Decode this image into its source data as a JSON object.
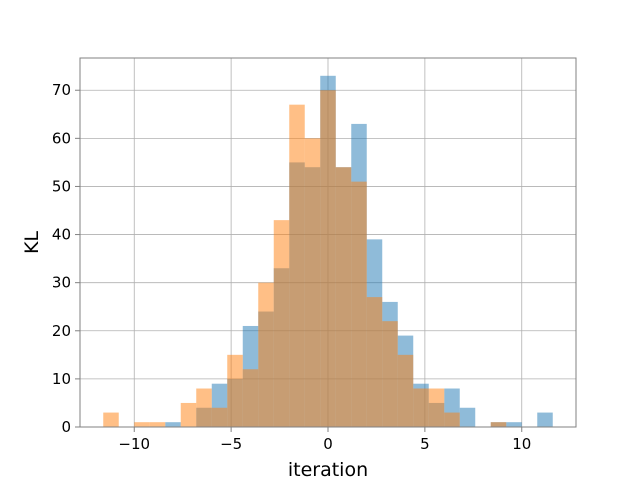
{
  "chart_data": {
    "type": "bar",
    "subtype": "overlapping-histogram",
    "title": "",
    "xlabel": "iteration",
    "ylabel": "KL",
    "xlim": [
      -12.8,
      12.8
    ],
    "ylim": [
      0,
      76.7
    ],
    "xticks": [
      -10,
      -5,
      0,
      5,
      10
    ],
    "yticks": [
      0,
      10,
      20,
      30,
      40,
      50,
      60,
      70
    ],
    "xtick_labels": [
      "−10",
      "−5",
      "0",
      "5",
      "10"
    ],
    "ytick_labels": [
      "0",
      "10",
      "20",
      "30",
      "40",
      "50",
      "60",
      "70"
    ],
    "grid": true,
    "legend": "none",
    "series": [
      {
        "color": "#1f77b4",
        "alpha": 0.5,
        "bins": [
          {
            "x0": -8.4,
            "x1": -7.6,
            "count": 1
          },
          {
            "x0": -6.8,
            "x1": -6.0,
            "count": 4
          },
          {
            "x0": -6.0,
            "x1": -5.2,
            "count": 9
          },
          {
            "x0": -5.2,
            "x1": -4.4,
            "count": 10
          },
          {
            "x0": -4.4,
            "x1": -3.6,
            "count": 21
          },
          {
            "x0": -3.6,
            "x1": -2.8,
            "count": 24
          },
          {
            "x0": -2.8,
            "x1": -2.0,
            "count": 33
          },
          {
            "x0": -2.0,
            "x1": -1.2,
            "count": 55
          },
          {
            "x0": -1.2,
            "x1": -0.4,
            "count": 54
          },
          {
            "x0": -0.4,
            "x1": 0.4,
            "count": 73
          },
          {
            "x0": 0.4,
            "x1": 1.2,
            "count": 54
          },
          {
            "x0": 1.2,
            "x1": 2.0,
            "count": 63
          },
          {
            "x0": 2.0,
            "x1": 2.8,
            "count": 39
          },
          {
            "x0": 2.8,
            "x1": 3.6,
            "count": 26
          },
          {
            "x0": 3.6,
            "x1": 4.4,
            "count": 19
          },
          {
            "x0": 4.4,
            "x1": 5.2,
            "count": 9
          },
          {
            "x0": 5.2,
            "x1": 6.0,
            "count": 5
          },
          {
            "x0": 6.0,
            "x1": 6.8,
            "count": 8
          },
          {
            "x0": 6.8,
            "x1": 7.6,
            "count": 4
          },
          {
            "x0": 8.4,
            "x1": 9.2,
            "count": 1
          },
          {
            "x0": 9.2,
            "x1": 10.0,
            "count": 1
          },
          {
            "x0": 10.8,
            "x1": 11.6,
            "count": 3
          }
        ]
      },
      {
        "color": "#ff7f0e",
        "alpha": 0.5,
        "bins": [
          {
            "x0": -11.6,
            "x1": -10.8,
            "count": 3
          },
          {
            "x0": -10.0,
            "x1": -9.2,
            "count": 1
          },
          {
            "x0": -9.2,
            "x1": -8.4,
            "count": 1
          },
          {
            "x0": -7.6,
            "x1": -6.8,
            "count": 5
          },
          {
            "x0": -6.8,
            "x1": -6.0,
            "count": 8
          },
          {
            "x0": -6.0,
            "x1": -5.2,
            "count": 4
          },
          {
            "x0": -5.2,
            "x1": -4.4,
            "count": 15
          },
          {
            "x0": -4.4,
            "x1": -3.6,
            "count": 12
          },
          {
            "x0": -3.6,
            "x1": -2.8,
            "count": 30
          },
          {
            "x0": -2.8,
            "x1": -2.0,
            "count": 43
          },
          {
            "x0": -2.0,
            "x1": -1.2,
            "count": 67
          },
          {
            "x0": -1.2,
            "x1": -0.4,
            "count": 60
          },
          {
            "x0": -0.4,
            "x1": 0.4,
            "count": 70
          },
          {
            "x0": 0.4,
            "x1": 1.2,
            "count": 54
          },
          {
            "x0": 1.2,
            "x1": 2.0,
            "count": 51
          },
          {
            "x0": 2.0,
            "x1": 2.8,
            "count": 27
          },
          {
            "x0": 2.8,
            "x1": 3.6,
            "count": 22
          },
          {
            "x0": 3.6,
            "x1": 4.4,
            "count": 15
          },
          {
            "x0": 4.4,
            "x1": 5.2,
            "count": 8
          },
          {
            "x0": 5.2,
            "x1": 6.0,
            "count": 8
          },
          {
            "x0": 6.0,
            "x1": 6.8,
            "count": 3
          },
          {
            "x0": 8.4,
            "x1": 9.2,
            "count": 1
          }
        ]
      }
    ]
  }
}
